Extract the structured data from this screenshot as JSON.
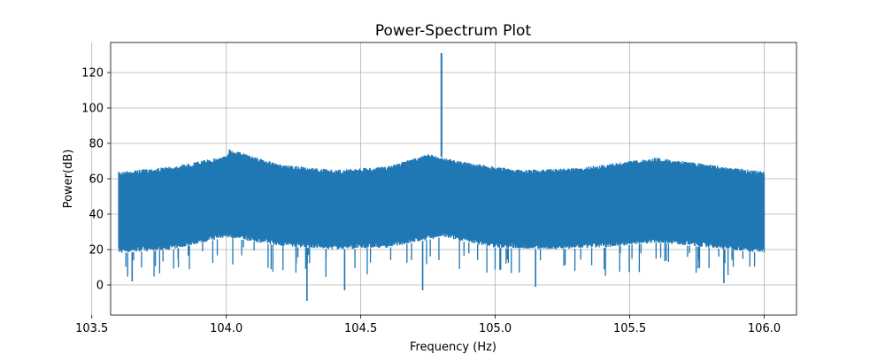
{
  "chart_data": {
    "type": "line",
    "title": "Power-Spectrum Plot",
    "xlabel": "Frequency (Hz)",
    "ylabel": "Power(dB)",
    "xlim": [
      103.57,
      106.12
    ],
    "ylim": [
      -17,
      137
    ],
    "x_ticks": [
      103.5,
      104.0,
      104.5,
      105.0,
      105.5,
      106.0
    ],
    "x_tick_labels": [
      "103.5",
      "104.0",
      "104.5",
      "105.0",
      "105.5",
      "106.0"
    ],
    "y_ticks": [
      0,
      20,
      40,
      60,
      80,
      100,
      120
    ],
    "y_tick_labels": [
      "0",
      "20",
      "40",
      "60",
      "80",
      "100",
      "120"
    ],
    "grid": true,
    "series": [
      {
        "color": "#1f77b4",
        "x_range": [
          103.6,
          106.0
        ],
        "upper_envelope": {
          "x": [
            103.6,
            103.8,
            104.0,
            104.01,
            104.2,
            104.4,
            104.6,
            104.75,
            104.9,
            105.1,
            105.3,
            105.5,
            105.6,
            105.7,
            105.9,
            106.0
          ],
          "y": [
            64,
            67,
            73,
            77,
            68,
            65,
            67,
            74,
            69,
            65,
            66,
            70,
            72,
            70,
            66,
            64
          ]
        },
        "lower_envelope": {
          "x": [
            103.6,
            103.8,
            104.0,
            104.2,
            104.4,
            104.6,
            104.8,
            105.0,
            105.2,
            105.4,
            105.6,
            105.8,
            106.0
          ],
          "y": [
            18,
            20,
            27,
            22,
            20,
            21,
            27,
            21,
            20,
            21,
            24,
            21,
            18
          ]
        },
        "peaks": [
          {
            "x": 104.8,
            "y": 131
          }
        ],
        "dips": [
          {
            "x": 104.3,
            "y": -9
          },
          {
            "x": 104.44,
            "y": -3
          },
          {
            "x": 104.73,
            "y": -3
          },
          {
            "x": 105.15,
            "y": -1
          },
          {
            "x": 103.65,
            "y": 2
          },
          {
            "x": 105.85,
            "y": 1
          }
        ]
      }
    ]
  }
}
